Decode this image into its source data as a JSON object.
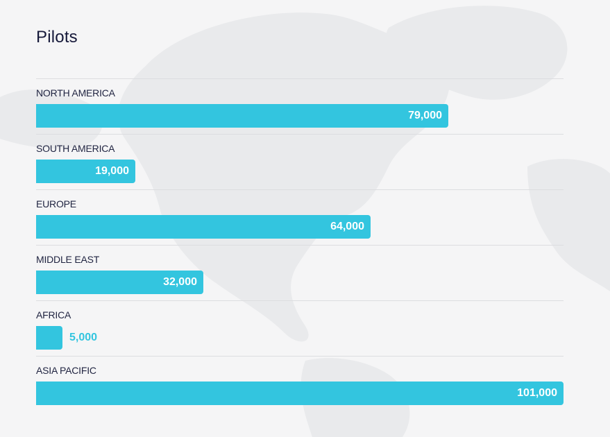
{
  "chart_data": {
    "type": "bar",
    "orientation": "horizontal",
    "title": "Pilots",
    "categories": [
      "NORTH AMERICA",
      "SOUTH AMERICA",
      "EUROPE",
      "MIDDLE EAST",
      "AFRICA",
      "ASIA PACIFIC"
    ],
    "values": [
      79000,
      19000,
      64000,
      32000,
      5000,
      101000
    ],
    "value_labels": [
      "79,000",
      "19,000",
      "64,000",
      "32,000",
      "5,000",
      "101,000"
    ],
    "xlim": [
      0,
      101000
    ],
    "bar_color": "#33c5df",
    "grid": false,
    "legend": "none"
  }
}
